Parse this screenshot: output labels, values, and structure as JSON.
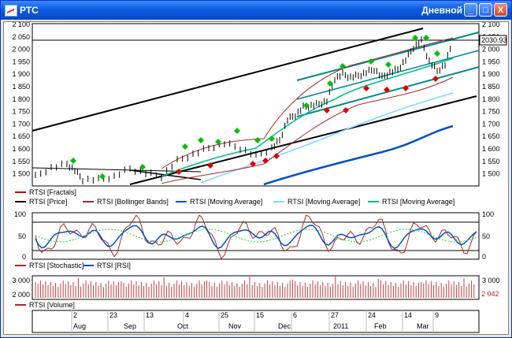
{
  "window": {
    "title": "РТС",
    "right_title": "Дневной",
    "buttons": [
      "_",
      "□",
      "X"
    ]
  },
  "price_panel": {
    "y_ticks": [
      "2 100",
      "2 050",
      "2 000",
      "1 950",
      "1 900",
      "1 850",
      "1 800",
      "1 750",
      "1 700",
      "1 650",
      "1 600",
      "1 550",
      "1 500"
    ],
    "current_label": "2030.93",
    "legend": [
      {
        "name": "RTSI [Fractals]",
        "color": "#cc0000"
      },
      {
        "name": "RTSI [Price]",
        "color": "#000000"
      },
      {
        "name": "RTSI [Bollinger Bands]",
        "color": "#a52a2a"
      },
      {
        "name": "RTSI [Moving Average]",
        "color": "#0050c8"
      },
      {
        "name": "RTSI [Moving Average]",
        "color": "#7fd8ff"
      },
      {
        "name": "RTSI [Moving Average]",
        "color": "#00c080"
      }
    ]
  },
  "oscillator_panel": {
    "y_ticks": [
      "100",
      "50",
      "0"
    ],
    "legend": [
      {
        "name": "RTSI [Stochastic]",
        "color": "#a52a2a"
      },
      {
        "name": "RTSI [RSI]",
        "color": "#0050c8"
      }
    ]
  },
  "volume_panel": {
    "y_ticks": [
      "3 000",
      "2 000"
    ],
    "current_label": "2 042",
    "legend": [
      {
        "name": "RTSI [Volume]",
        "color": "#a52a2a"
      }
    ]
  },
  "x_axis": {
    "days": [
      "2",
      "23",
      "13",
      "4",
      "25",
      "15",
      "6",
      "27",
      "24",
      "14",
      "9"
    ],
    "months": [
      "Aug",
      "Sep",
      "Oct",
      "Nov",
      "Dec",
      "2011",
      "Feb",
      "Mar"
    ]
  }
}
